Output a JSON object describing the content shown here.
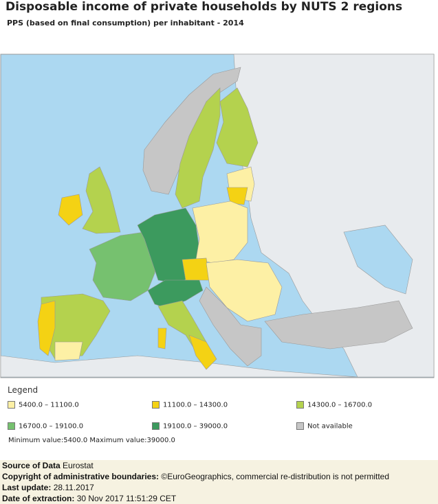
{
  "header": {
    "title": "Disposable income of private households by NUTS 2 regions",
    "subtitle": "PPS (based on final consumption) per inhabitant - 2014"
  },
  "legend": {
    "title": "Legend",
    "items": [
      {
        "label": "5400.0 – 11100.0",
        "color": "#fdf0a5"
      },
      {
        "label": "11100.0 – 14300.0",
        "color": "#f4d214"
      },
      {
        "label": "14300.0 – 16700.0",
        "color": "#b4d24e"
      },
      {
        "label": "16700.0 – 19100.0",
        "color": "#76c16f"
      },
      {
        "label": "19100.0 – 39000.0",
        "color": "#3c9a5e"
      },
      {
        "label": "Not available",
        "color": "#c6c6c6"
      }
    ],
    "minmax": "Minimum value:5400.0 Maximum value:39000.0"
  },
  "footer": {
    "rows": [
      {
        "label": "Source of Data",
        "text": "Eurostat"
      },
      {
        "label": "Copyright of administrative boundaries:",
        "text": "©EuroGeographics, commercial re-distribution is not permitted"
      },
      {
        "label": "Last update:",
        "text": "28.11.2017"
      },
      {
        "label": "Date of extraction:",
        "text": "30 Nov 2017 11:51:29 CET"
      }
    ]
  }
}
